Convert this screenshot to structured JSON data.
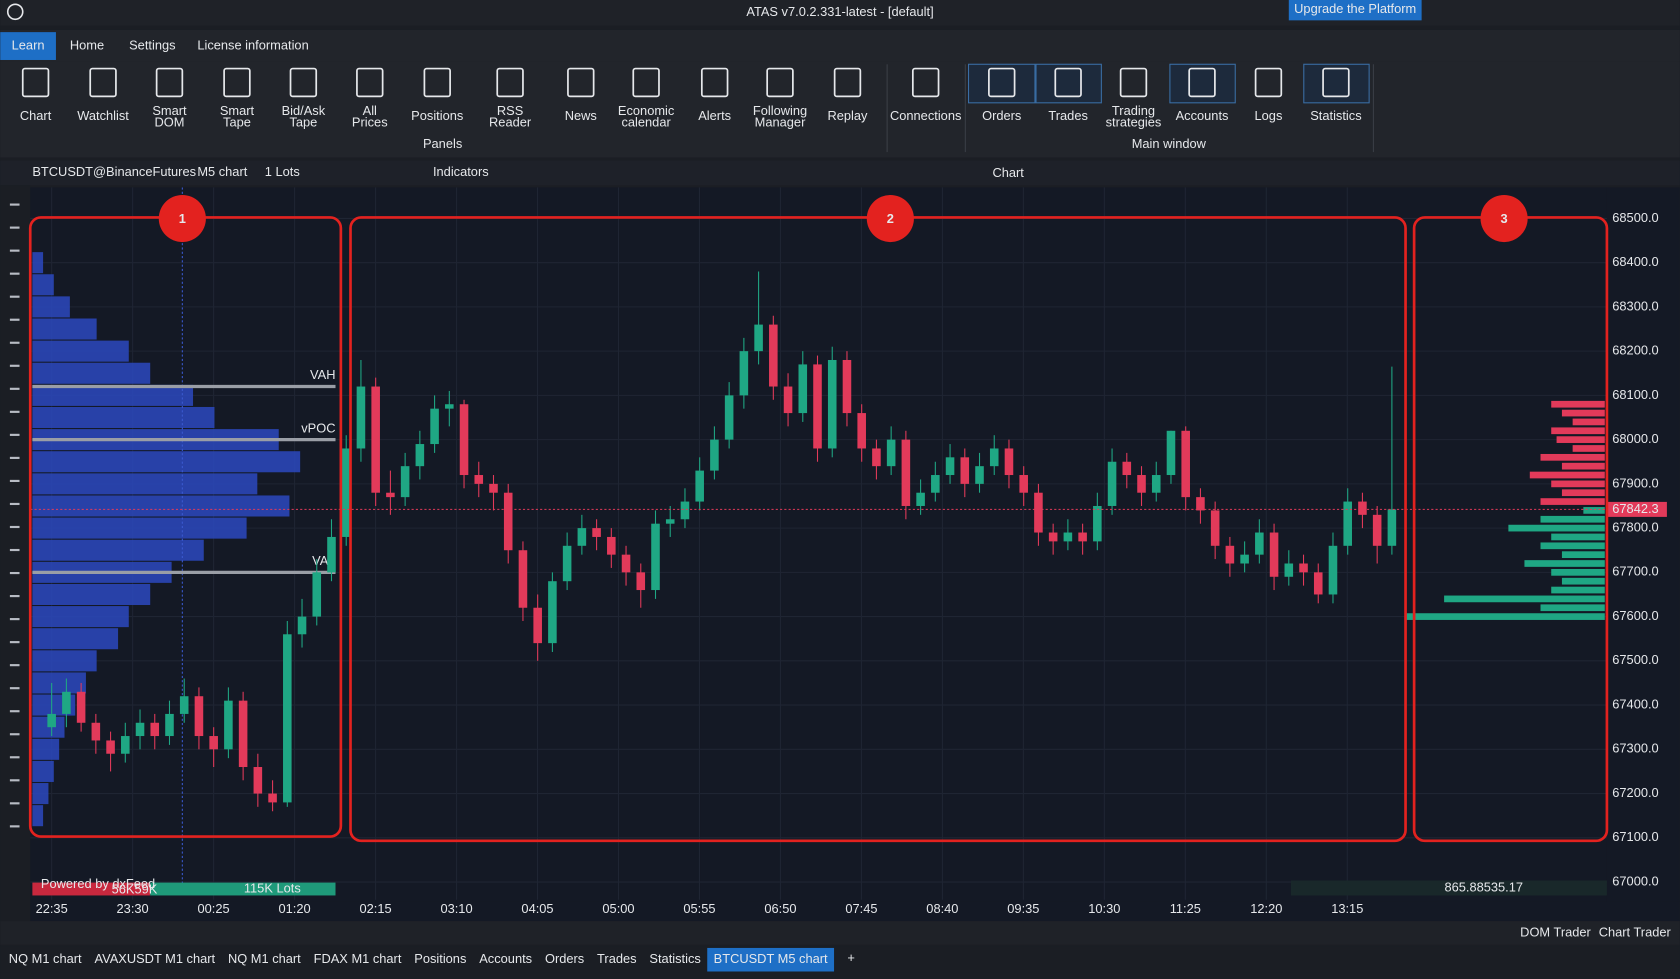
{
  "title_bar": {
    "title": "ATAS v7.0.2.331-latest - [default]",
    "upgrade": "Upgrade the Platform"
  },
  "menu": [
    "Learn",
    "Home",
    "Settings",
    "License information"
  ],
  "ribbon": {
    "items": [
      {
        "lines": [
          "Chart"
        ]
      },
      {
        "lines": [
          "Watchlist"
        ]
      },
      {
        "lines": [
          "Smart",
          "DOM"
        ]
      },
      {
        "lines": [
          "Smart",
          "Tape"
        ]
      },
      {
        "lines": [
          "Bid/Ask",
          "Tape"
        ]
      },
      {
        "lines": [
          "All",
          "Prices"
        ]
      },
      {
        "lines": [
          "Positions"
        ]
      },
      {
        "lines": [
          "RSS",
          "Reader"
        ]
      },
      {
        "lines": [
          "News"
        ]
      },
      {
        "lines": [
          "Economic",
          "calendar"
        ]
      },
      {
        "lines": [
          "Alerts"
        ]
      },
      {
        "lines": [
          "Following",
          "Manager"
        ]
      },
      {
        "lines": [
          "Replay"
        ]
      },
      {
        "lines": [
          "Connections"
        ]
      },
      {
        "lines": [
          "Orders"
        ]
      },
      {
        "lines": [
          "Trades"
        ]
      },
      {
        "lines": [
          "Trading",
          "strategies"
        ]
      },
      {
        "lines": [
          "Accounts"
        ]
      },
      {
        "lines": [
          "Logs"
        ]
      },
      {
        "lines": [
          "Statistics"
        ]
      }
    ],
    "groups": [
      "Panels",
      "Main window"
    ]
  },
  "chart_header": {
    "symbol": "BTCUSDT@BinanceFutures",
    "timeframe": "M5 chart",
    "lots": "1 Lots",
    "indicators": "Indicators",
    "window": "Chart"
  },
  "chart_data": {
    "type": "candlestick",
    "up_color": "#1fa784",
    "down_color": "#e23a5a",
    "ylim": [
      66960,
      68570
    ],
    "yticks": [
      {
        "value": 67000,
        "label": "67000.0"
      },
      {
        "value": 67100,
        "label": "67100.0"
      },
      {
        "value": 67200,
        "label": "67200.0"
      },
      {
        "value": 67300,
        "label": "67300.0"
      },
      {
        "value": 67400,
        "label": "67400.0"
      },
      {
        "value": 67500,
        "label": "67500.0"
      },
      {
        "value": 67600,
        "label": "67600.0"
      },
      {
        "value": 67700,
        "label": "67700.0"
      },
      {
        "value": 67800,
        "label": "67800.0"
      },
      {
        "value": 67900,
        "label": "67900.0"
      },
      {
        "value": 68000,
        "label": "68000.0"
      },
      {
        "value": 68100,
        "label": "68100.0"
      },
      {
        "value": 68200,
        "label": "68200.0"
      },
      {
        "value": 68300,
        "label": "68300.0"
      },
      {
        "value": 68400,
        "label": "68400.0"
      },
      {
        "value": 68500,
        "label": "68500.0"
      }
    ],
    "xticks": [
      "22:35",
      "23:30",
      "00:25",
      "01:20",
      "02:15",
      "03:10",
      "04:05",
      "05:00",
      "05:55",
      "06:50",
      "07:45",
      "08:40",
      "09:35",
      "10:30",
      "11:25",
      "12:20",
      "13:15"
    ],
    "grid": true,
    "candles": [
      [
        67350,
        67450,
        67330,
        67380
      ],
      [
        67380,
        67460,
        67350,
        67430
      ],
      [
        67430,
        67450,
        67340,
        67360
      ],
      [
        67360,
        67380,
        67290,
        67320
      ],
      [
        67320,
        67340,
        67250,
        67290
      ],
      [
        67290,
        67360,
        67270,
        67330
      ],
      [
        67330,
        67390,
        67300,
        67360
      ],
      [
        67360,
        67380,
        67300,
        67330
      ],
      [
        67330,
        67410,
        67310,
        67380
      ],
      [
        67380,
        67460,
        67360,
        67420
      ],
      [
        67420,
        67440,
        67300,
        67330
      ],
      [
        67330,
        67350,
        67260,
        67300
      ],
      [
        67300,
        67440,
        67280,
        67410
      ],
      [
        67410,
        67430,
        67230,
        67260
      ],
      [
        67260,
        67290,
        67170,
        67200
      ],
      [
        67200,
        67230,
        67160,
        67180
      ],
      [
        67180,
        67590,
        67170,
        67560
      ],
      [
        67560,
        67640,
        67530,
        67600
      ],
      [
        67600,
        67730,
        67580,
        67700
      ],
      [
        67700,
        67820,
        67680,
        67780
      ],
      [
        67780,
        68010,
        67760,
        67980
      ],
      [
        67980,
        68180,
        67950,
        68120
      ],
      [
        68120,
        68140,
        67850,
        67880
      ],
      [
        67880,
        67930,
        67830,
        67870
      ],
      [
        67870,
        67970,
        67850,
        67940
      ],
      [
        67940,
        68020,
        67910,
        67990
      ],
      [
        67990,
        68100,
        67970,
        68070
      ],
      [
        68070,
        68110,
        68030,
        68080
      ],
      [
        68080,
        68090,
        67890,
        67920
      ],
      [
        67920,
        67950,
        67870,
        67900
      ],
      [
        67900,
        67920,
        67840,
        67880
      ],
      [
        67880,
        67900,
        67720,
        67750
      ],
      [
        67750,
        67770,
        67590,
        67620
      ],
      [
        67620,
        67650,
        67500,
        67540
      ],
      [
        67540,
        67700,
        67520,
        67680
      ],
      [
        67680,
        67790,
        67660,
        67760
      ],
      [
        67760,
        67830,
        67740,
        67800
      ],
      [
        67800,
        67820,
        67750,
        67780
      ],
      [
        67780,
        67800,
        67710,
        67740
      ],
      [
        67740,
        67760,
        67670,
        67700
      ],
      [
        67700,
        67720,
        67620,
        67660
      ],
      [
        67660,
        67840,
        67640,
        67810
      ],
      [
        67810,
        67850,
        67780,
        67820
      ],
      [
        67820,
        67890,
        67800,
        67860
      ],
      [
        67860,
        67960,
        67840,
        67930
      ],
      [
        67930,
        68030,
        67910,
        68000
      ],
      [
        68000,
        68130,
        67980,
        68100
      ],
      [
        68100,
        68230,
        68070,
        68200
      ],
      [
        68200,
        68380,
        68170,
        68260
      ],
      [
        68260,
        68280,
        68090,
        68120
      ],
      [
        68120,
        68150,
        68030,
        68060
      ],
      [
        68060,
        68200,
        68040,
        68170
      ],
      [
        68170,
        68190,
        67950,
        67980
      ],
      [
        67980,
        68210,
        67960,
        68180
      ],
      [
        68180,
        68200,
        68030,
        68060
      ],
      [
        68060,
        68080,
        67950,
        67980
      ],
      [
        67980,
        68000,
        67910,
        67940
      ],
      [
        67940,
        68030,
        67920,
        68000
      ],
      [
        68000,
        68020,
        67820,
        67850
      ],
      [
        67850,
        67910,
        67830,
        67880
      ],
      [
        67880,
        67950,
        67860,
        67920
      ],
      [
        67920,
        67990,
        67900,
        67960
      ],
      [
        67960,
        67980,
        67870,
        67900
      ],
      [
        67900,
        67970,
        67880,
        67940
      ],
      [
        67940,
        68010,
        67920,
        67980
      ],
      [
        67980,
        68000,
        67890,
        67920
      ],
      [
        67920,
        67940,
        67850,
        67880
      ],
      [
        67880,
        67900,
        67760,
        67790
      ],
      [
        67790,
        67810,
        67740,
        67770
      ],
      [
        67770,
        67820,
        67750,
        67790
      ],
      [
        67790,
        67810,
        67740,
        67770
      ],
      [
        67770,
        67880,
        67750,
        67850
      ],
      [
        67850,
        67980,
        67830,
        67950
      ],
      [
        67950,
        67970,
        67890,
        67920
      ],
      [
        67920,
        67940,
        67850,
        67880
      ],
      [
        67880,
        67950,
        67860,
        67920
      ],
      [
        67920,
        68020,
        67900,
        68020
      ],
      [
        68020,
        68030,
        67840,
        67870
      ],
      [
        67870,
        67890,
        67810,
        67840
      ],
      [
        67840,
        67860,
        67730,
        67760
      ],
      [
        67760,
        67780,
        67690,
        67720
      ],
      [
        67720,
        67770,
        67700,
        67740
      ],
      [
        67740,
        67820,
        67720,
        67790
      ],
      [
        67790,
        67810,
        67660,
        67690
      ],
      [
        67690,
        67750,
        67670,
        67720
      ],
      [
        67720,
        67740,
        67670,
        67700
      ],
      [
        67700,
        67720,
        67630,
        67650
      ],
      [
        67650,
        67790,
        67630,
        67760
      ],
      [
        67760,
        67890,
        67740,
        67860
      ],
      [
        67860,
        67880,
        67800,
        67830
      ],
      [
        67830,
        67850,
        67720,
        67760
      ],
      [
        67760,
        68165,
        67740,
        67842.3
      ]
    ],
    "session_profile": {
      "color": "#2b49c0",
      "prices": [
        68400,
        68350,
        68300,
        68250,
        68200,
        68150,
        68100,
        68050,
        68000,
        67950,
        67900,
        67850,
        67800,
        67750,
        67700,
        67650,
        67600,
        67550,
        67500,
        67450,
        67400,
        67350,
        67300,
        67250,
        67200,
        67150
      ],
      "volumes": [
        10,
        20,
        35,
        60,
        90,
        110,
        150,
        170,
        230,
        250,
        210,
        240,
        200,
        160,
        130,
        110,
        90,
        80,
        60,
        50,
        40,
        30,
        25,
        20,
        15,
        10
      ]
    },
    "levels": [
      {
        "label": "VAH",
        "value": 68120
      },
      {
        "label": "vPOC",
        "value": 68000
      },
      {
        "label": "VAL",
        "value": 67700
      }
    ],
    "level_color": "#9a9ea6",
    "visible_profile": {
      "prices": [
        68080,
        68060,
        68040,
        68020,
        68000,
        67980,
        67960,
        67940,
        67920,
        67900,
        67880,
        67860,
        67840,
        67820,
        67800,
        67780,
        67760,
        67740,
        67720,
        67700,
        67680,
        67660,
        67640,
        67620,
        67600
      ],
      "volumes": [
        50,
        40,
        30,
        50,
        45,
        30,
        60,
        40,
        70,
        50,
        40,
        60,
        20,
        60,
        90,
        50,
        60,
        40,
        75,
        50,
        40,
        50,
        150,
        60,
        185
      ]
    },
    "annotations": [
      "1",
      "2",
      "3"
    ],
    "footer_texts": {
      "powered": "Powered by dxFeed",
      "left_volume": "56K59K",
      "total": "115K Lots",
      "right_value": "865.88535.17"
    }
  },
  "footer": {
    "dom_trader": "DOM Trader",
    "chart_trader": "Chart Trader"
  },
  "tabs": [
    "NQ M1 chart",
    "AVAXUSDT M1 chart",
    "NQ M1 chart",
    "FDAX M1 chart",
    "Positions",
    "Accounts",
    "Orders",
    "Trades",
    "Statistics",
    "BTCUSDT M5 chart"
  ]
}
